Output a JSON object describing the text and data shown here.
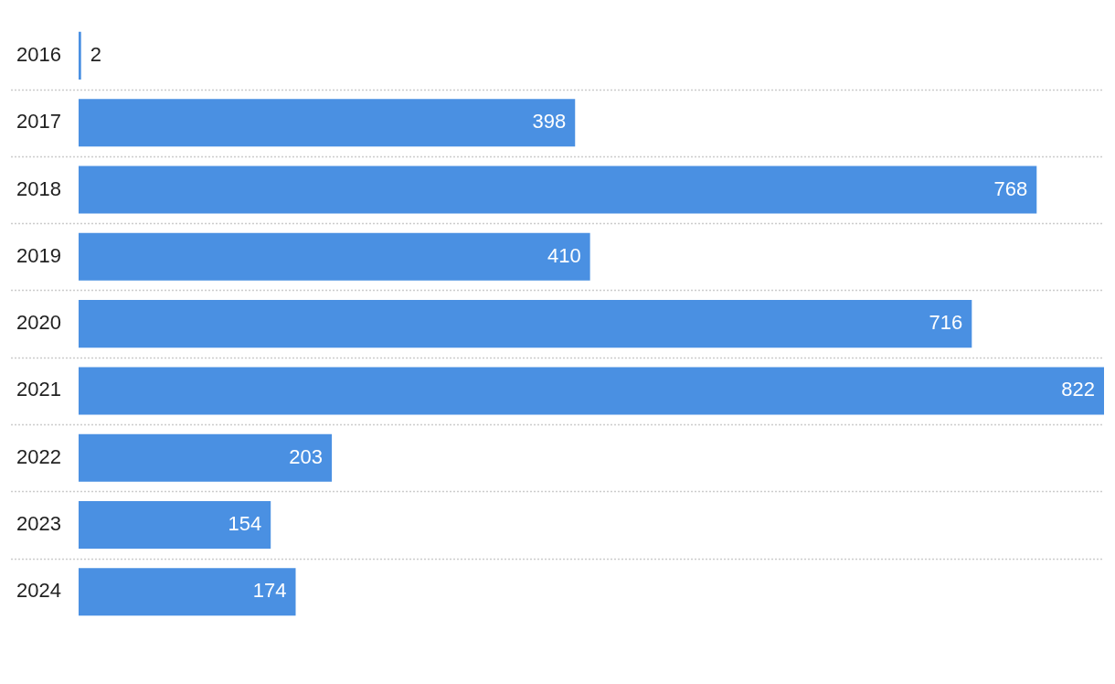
{
  "chart_data": {
    "type": "bar",
    "orientation": "horizontal",
    "categories": [
      "2016",
      "2017",
      "2018",
      "2019",
      "2020",
      "2021",
      "2022",
      "2023",
      "2024"
    ],
    "values": [
      2,
      398,
      768,
      410,
      716,
      822,
      203,
      154,
      174
    ],
    "color": "#4a90e2",
    "data_labels": true,
    "grid": "y",
    "tick_labels": "y"
  }
}
